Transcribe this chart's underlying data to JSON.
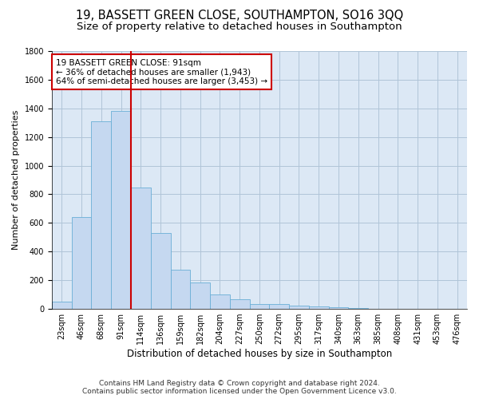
{
  "title": "19, BASSETT GREEN CLOSE, SOUTHAMPTON, SO16 3QQ",
  "subtitle": "Size of property relative to detached houses in Southampton",
  "xlabel": "Distribution of detached houses by size in Southampton",
  "ylabel": "Number of detached properties",
  "footnote1": "Contains HM Land Registry data © Crown copyright and database right 2024.",
  "footnote2": "Contains public sector information licensed under the Open Government Licence v3.0.",
  "annotation_line1": "19 BASSETT GREEN CLOSE: 91sqm",
  "annotation_line2": "← 36% of detached houses are smaller (1,943)",
  "annotation_line3": "64% of semi-detached houses are larger (3,453) →",
  "bar_categories": [
    "23sqm",
    "46sqm",
    "68sqm",
    "91sqm",
    "114sqm",
    "136sqm",
    "159sqm",
    "182sqm",
    "204sqm",
    "227sqm",
    "250sqm",
    "272sqm",
    "295sqm",
    "317sqm",
    "340sqm",
    "363sqm",
    "385sqm",
    "408sqm",
    "431sqm",
    "453sqm",
    "476sqm"
  ],
  "bar_values": [
    50,
    640,
    1310,
    1380,
    850,
    530,
    275,
    185,
    100,
    65,
    35,
    35,
    25,
    15,
    10,
    5,
    3,
    2,
    1,
    1,
    1
  ],
  "bar_color": "#c5d8f0",
  "bar_edge_color": "#6aaed6",
  "highlight_index": 3,
  "highlight_line_color": "#cc0000",
  "annotation_box_edge_color": "#cc0000",
  "annotation_box_face_color": "#ffffff",
  "ylim": [
    0,
    1800
  ],
  "yticks": [
    0,
    200,
    400,
    600,
    800,
    1000,
    1200,
    1400,
    1600,
    1800
  ],
  "grid_color": "#b0c4d8",
  "axes_face_color": "#dce8f5",
  "fig_face_color": "#ffffff",
  "title_fontsize": 10.5,
  "subtitle_fontsize": 9.5,
  "xlabel_fontsize": 8.5,
  "ylabel_fontsize": 8,
  "tick_fontsize": 7,
  "footnote_fontsize": 6.5,
  "annotation_fontsize": 7.5
}
